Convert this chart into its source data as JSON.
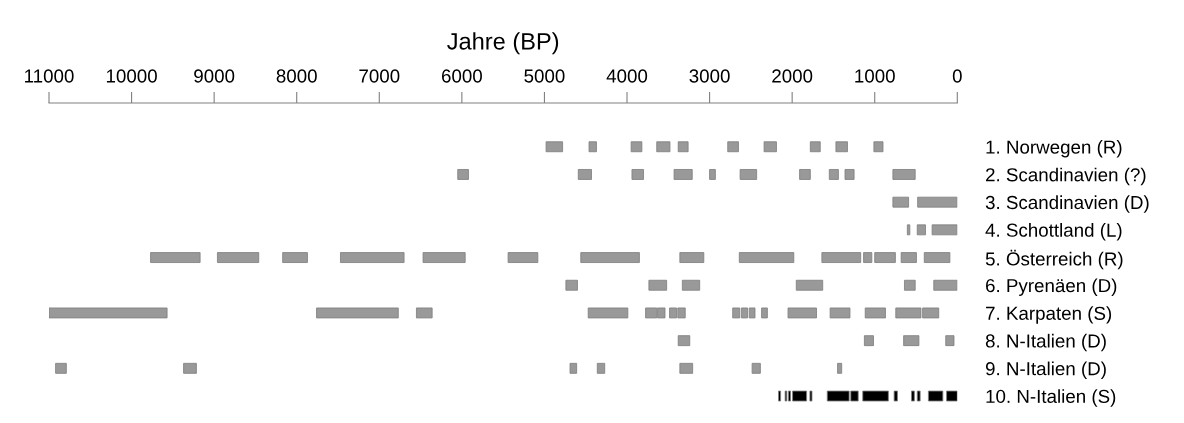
{
  "chart_data": {
    "type": "bar",
    "orientation": "horizontal",
    "xlabel": "Jahre (BP)",
    "categories": [
      "1. Norwegen (R)",
      "2. Scandinavien (?)",
      "3. Scandinavien (D)",
      "4. Schottland (L)",
      "5. Österreich (R)",
      "6. Pyrenäen (D)",
      "7. Karpaten (S)",
      "8. N-Italien (D)",
      "9. N-Italien (D)",
      "10. N-Italien (S)"
    ],
    "xlim": [
      11000,
      0
    ],
    "xticks": [
      11000,
      10000,
      9000,
      8000,
      7000,
      6000,
      5000,
      4000,
      3000,
      2000,
      1000,
      0
    ],
    "grid": false,
    "legend": false,
    "series": [
      {
        "colors": [
          "#999999",
          "#999999",
          "#999999",
          "#999999",
          "#999999",
          "#999999",
          "#999999",
          "#999999",
          "#999999",
          "#000000"
        ],
        "base": [
          4780,
          5920,
          590,
          575,
          9170,
          4600,
          9570,
          3240,
          10790,
          2140
        ],
        "values": [
          200,
          130,
          190,
          30,
          600,
          140,
          1430,
          140,
          130,
          25
        ]
      },
      {
        "colors": [
          "#999999",
          "#999999",
          "#999999",
          "#999999",
          "#999999",
          "#999999",
          "#999999",
          "#999999",
          "#999999",
          "#000000"
        ],
        "base": [
          4370,
          4430,
          0,
          385,
          8460,
          3520,
          6770,
          1015,
          9215,
          2065
        ],
        "values": [
          90,
          160,
          480,
          100,
          500,
          215,
          990,
          110,
          155,
          20
        ]
      },
      {
        "colors": [
          "#999999",
          "#999999",
          "#999999",
          "#999999",
          "#999999",
          "#999999",
          "#999999",
          "#999999",
          "#999999",
          "#000000"
        ],
        "base": [
          3820,
          3800,
          null,
          0,
          7870,
          3120,
          6360,
          465,
          4610,
          2020
        ],
        "values": [
          130,
          140,
          null,
          305,
          300,
          210,
          190,
          185,
          80,
          25
        ]
      },
      {
        "colors": [
          "#999999",
          "#999999",
          "#999999",
          "#999999",
          "#999999",
          "#999999",
          "#999999",
          "#999999",
          "#999999",
          "#000000"
        ],
        "base": [
          3480,
          3210,
          null,
          null,
          6700,
          1630,
          3990,
          40,
          4270,
          1825
        ],
        "values": [
          160,
          220,
          null,
          null,
          770,
          320,
          480,
          100,
          90,
          170
        ]
      },
      {
        "colors": [
          "#999999",
          "#999999",
          "#999999",
          "#999999",
          "#999999",
          "#999999",
          "#999999",
          "#999999",
          "#999999",
          "#000000"
        ],
        "base": [
          3260,
          2930,
          null,
          null,
          5960,
          510,
          3640,
          null,
          3205,
          1760
        ],
        "values": [
          120,
          70,
          null,
          null,
          510,
          130,
          135,
          null,
          155,
          25
        ]
      },
      {
        "colors": [
          "#999999",
          "#999999",
          "#999999",
          "#999999",
          "#999999",
          "#999999",
          "#999999",
          "#999999",
          "#999999",
          "#000000"
        ],
        "base": [
          2650,
          2430,
          null,
          null,
          5080,
          0,
          3540,
          null,
          2385,
          1310
        ],
        "values": [
          130,
          200,
          null,
          null,
          360,
          285,
          90,
          null,
          100,
          265
        ]
      },
      {
        "colors": [
          "#999999",
          "#999999",
          "#999999",
          "#999999",
          "#999999",
          "#999999",
          "#999999",
          "#999999",
          "#999999",
          "#000000"
        ],
        "base": [
          2190,
          1780,
          null,
          null,
          3850,
          null,
          3400,
          null,
          1400,
          1200
        ],
        "values": [
          150,
          130,
          null,
          null,
          710,
          null,
          85,
          null,
          50,
          90
        ]
      },
      {
        "colors": [
          "#999999",
          "#999999",
          "#999999",
          "#999999",
          "#999999",
          "#999999",
          "#999999",
          "#999999",
          "#999999",
          "#000000"
        ],
        "base": [
          1660,
          1440,
          null,
          null,
          3070,
          null,
          3295,
          null,
          null,
          835
        ],
        "values": [
          120,
          110,
          null,
          null,
          290,
          null,
          90,
          null,
          null,
          310
        ]
      },
      {
        "colors": [
          "#999999",
          "#999999",
          "#999999",
          "#999999",
          "#999999",
          "#999999",
          "#999999",
          "#999999",
          "#999999",
          "#000000"
        ],
        "base": [
          1330,
          1250,
          null,
          null,
          1980,
          null,
          2635,
          null,
          null,
          725
        ],
        "values": [
          140,
          110,
          null,
          null,
          660,
          null,
          85,
          null,
          null,
          40
        ]
      },
      {
        "colors": [
          "#999999",
          "#999999",
          "#999999",
          "#999999",
          "#999999",
          "#999999",
          "#999999",
          "#999999",
          "#999999",
          "#000000"
        ],
        "base": [
          900,
          510,
          null,
          null,
          1170,
          null,
          2540,
          null,
          null,
          520
        ],
        "values": [
          110,
          270,
          null,
          null,
          470,
          null,
          75,
          null,
          null,
          35
        ]
      },
      {
        "colors": [
          "#999999",
          "#999999",
          "#999999",
          "#999999",
          "#999999",
          "#999999",
          "#999999",
          "#999999",
          "#999999",
          "#000000"
        ],
        "base": [
          null,
          null,
          null,
          null,
          1035,
          null,
          2450,
          null,
          null,
          450
        ],
        "values": [
          null,
          null,
          null,
          null,
          100,
          null,
          70,
          null,
          null,
          35
        ]
      },
      {
        "colors": [
          "#999999",
          "#999999",
          "#999999",
          "#999999",
          "#999999",
          "#999999",
          "#999999",
          "#999999",
          "#999999",
          "#000000"
        ],
        "base": [
          null,
          null,
          null,
          null,
          750,
          null,
          2300,
          null,
          null,
          175
        ],
        "values": [
          null,
          null,
          null,
          null,
          250,
          null,
          70,
          null,
          null,
          175
        ]
      },
      {
        "colors": [
          "#999999",
          "#999999",
          "#999999",
          "#999999",
          "#999999",
          "#999999",
          "#999999",
          "#999999",
          "#999999",
          "#000000"
        ],
        "base": [
          null,
          null,
          null,
          null,
          495,
          null,
          1705,
          null,
          null,
          0
        ],
        "values": [
          null,
          null,
          null,
          null,
          185,
          null,
          345,
          null,
          null,
          130
        ]
      },
      {
        "colors": [
          "#999999",
          "#999999",
          "#999999",
          "#999999",
          "#999999",
          "#999999",
          "#999999",
          "#999999",
          "#999999",
          "#000000"
        ],
        "base": [
          null,
          null,
          null,
          null,
          90,
          null,
          1300,
          null,
          null,
          null
        ],
        "values": [
          null,
          null,
          null,
          null,
          310,
          null,
          240,
          null,
          null,
          null
        ]
      },
      {
        "colors": [
          "#999999",
          "#999999",
          "#999999",
          "#999999",
          "#999999",
          "#999999",
          "#999999",
          "#999999",
          "#999999",
          "#000000"
        ],
        "base": [
          null,
          null,
          null,
          null,
          null,
          null,
          870,
          null,
          null,
          null
        ],
        "values": [
          null,
          null,
          null,
          null,
          null,
          null,
          245,
          null,
          null,
          null
        ]
      },
      {
        "colors": [
          "#999999",
          "#999999",
          "#999999",
          "#999999",
          "#999999",
          "#999999",
          "#999999",
          "#999999",
          "#999999",
          "#000000"
        ],
        "base": [
          null,
          null,
          null,
          null,
          null,
          null,
          440,
          null,
          null,
          null
        ],
        "values": [
          null,
          null,
          null,
          null,
          null,
          null,
          305,
          null,
          null,
          null
        ]
      },
      {
        "colors": [
          "#999999",
          "#999999",
          "#999999",
          "#999999",
          "#999999",
          "#999999",
          "#999999",
          "#999999",
          "#999999",
          "#000000"
        ],
        "base": [
          null,
          null,
          null,
          null,
          null,
          null,
          225,
          null,
          null,
          null
        ],
        "values": [
          null,
          null,
          null,
          null,
          null,
          null,
          195,
          null,
          null,
          null
        ]
      }
    ]
  }
}
